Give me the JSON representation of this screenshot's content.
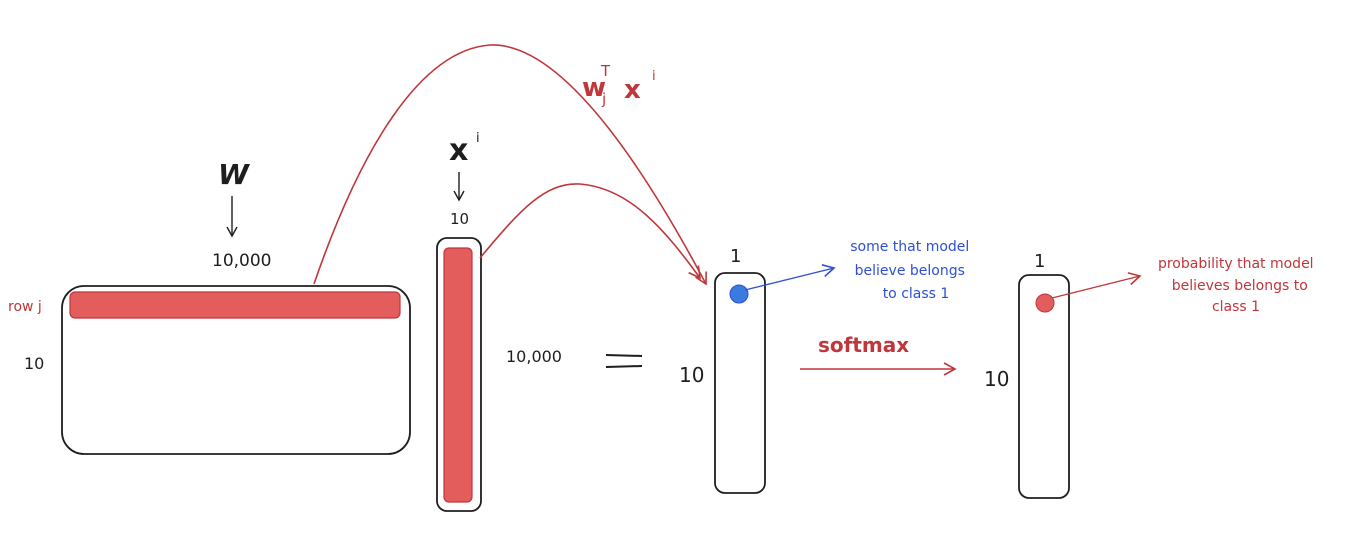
{
  "colors": {
    "ink": "#1e1e1e",
    "red": "#c0363a",
    "fill_red": "#e35d5d",
    "blue": "#2f4fd6",
    "dot_blue": "#3b7be0"
  },
  "matrix_w": {
    "symbol": "W",
    "cols_label": "10,000",
    "rows_label": "10",
    "row_label": "row j"
  },
  "vector_x": {
    "symbol": "x",
    "superscript": "i",
    "dim_label": "10",
    "length_label": "10,000"
  },
  "equals": "=",
  "formula": {
    "w": "w",
    "sup": "T",
    "sub": "j",
    "x": "x",
    "x_sup": "i"
  },
  "scores_vector": {
    "width_label": "1",
    "height_label": "10",
    "annotation_lines": [
      "some that model",
      "believe belongs",
      "to class 1"
    ]
  },
  "softmax_label": "softmax",
  "prob_vector": {
    "width_label": "1",
    "height_label": "10",
    "annotation_lines": [
      "probability that model",
      "believes belongs to",
      "class 1"
    ]
  }
}
